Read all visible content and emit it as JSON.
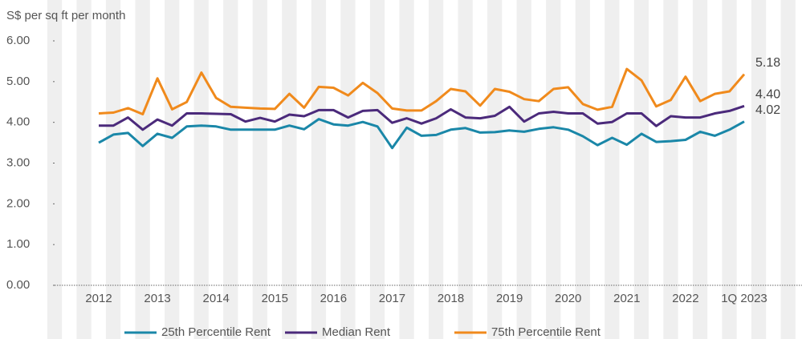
{
  "chart_data": {
    "type": "line",
    "y_axis_label": "S$ per sq ft per month",
    "categories": [
      "2012",
      null,
      null,
      null,
      "2013",
      null,
      null,
      null,
      "2014",
      null,
      null,
      null,
      "2015",
      null,
      null,
      null,
      "2016",
      null,
      null,
      null,
      "2017",
      null,
      null,
      null,
      "2018",
      null,
      null,
      null,
      "2019",
      null,
      null,
      null,
      "2020",
      null,
      null,
      null,
      "2021",
      null,
      null,
      null,
      "2022",
      null,
      null,
      null,
      "1Q 2023"
    ],
    "ylim": [
      0,
      6
    ],
    "yticks": [
      {
        "value": 0,
        "label": "0.00"
      },
      {
        "value": 1,
        "label": "1.00"
      },
      {
        "value": 2,
        "label": "2.00"
      },
      {
        "value": 3,
        "label": "3.00"
      },
      {
        "value": 4,
        "label": "4.00"
      },
      {
        "value": 5,
        "label": "5.00"
      },
      {
        "value": 6,
        "label": "6.00"
      }
    ],
    "grid": false,
    "legend": "bottom",
    "series": [
      {
        "name": "25th Percentile Rent",
        "color": "#1a87a8",
        "values": [
          3.5,
          3.7,
          3.74,
          3.42,
          3.72,
          3.62,
          3.9,
          3.92,
          3.9,
          3.82,
          3.82,
          3.82,
          3.82,
          3.92,
          3.83,
          4.08,
          3.95,
          3.92,
          4.01,
          3.9,
          3.37,
          3.87,
          3.67,
          3.69,
          3.82,
          3.86,
          3.75,
          3.76,
          3.8,
          3.77,
          3.84,
          3.88,
          3.82,
          3.66,
          3.44,
          3.62,
          3.45,
          3.72,
          3.52,
          3.54,
          3.57,
          3.77,
          3.67,
          3.82,
          4.02
        ],
        "value_labels": [
          null,
          null,
          null,
          null,
          null,
          null,
          null,
          null,
          null,
          null,
          null,
          null,
          null,
          null,
          null,
          null,
          null,
          null,
          null,
          null,
          null,
          null,
          null,
          null,
          null,
          null,
          null,
          null,
          null,
          null,
          null,
          null,
          null,
          null,
          null,
          null,
          null,
          null,
          null,
          null,
          null,
          null,
          null,
          null,
          "4.02"
        ]
      },
      {
        "name": "Median Rent",
        "color": "#4b2a7b",
        "values": [
          3.92,
          3.92,
          4.12,
          3.82,
          4.07,
          3.92,
          4.22,
          4.22,
          4.21,
          4.2,
          4.02,
          4.11,
          4.02,
          4.19,
          4.15,
          4.3,
          4.3,
          4.12,
          4.28,
          4.3,
          3.99,
          4.1,
          3.97,
          4.1,
          4.32,
          4.12,
          4.1,
          4.16,
          4.38,
          4.02,
          4.22,
          4.26,
          4.22,
          4.22,
          3.97,
          4.01,
          4.22,
          4.22,
          3.91,
          4.15,
          4.12,
          4.12,
          4.22,
          4.28,
          4.4
        ],
        "value_labels": [
          null,
          null,
          null,
          null,
          null,
          null,
          null,
          null,
          null,
          null,
          null,
          null,
          null,
          null,
          null,
          null,
          null,
          null,
          null,
          null,
          null,
          null,
          null,
          null,
          null,
          null,
          null,
          null,
          null,
          null,
          null,
          null,
          null,
          null,
          null,
          null,
          null,
          null,
          null,
          null,
          null,
          null,
          null,
          null,
          "4.40"
        ]
      },
      {
        "name": "75th Percentile Rent",
        "color": "#f08a1c",
        "values": [
          4.22,
          4.24,
          4.35,
          4.2,
          5.08,
          4.32,
          4.5,
          5.22,
          4.6,
          4.38,
          4.36,
          4.34,
          4.33,
          4.7,
          4.36,
          4.87,
          4.85,
          4.66,
          4.97,
          4.72,
          4.34,
          4.29,
          4.29,
          4.52,
          4.82,
          4.76,
          4.41,
          4.82,
          4.75,
          4.57,
          4.52,
          4.82,
          4.86,
          4.45,
          4.31,
          4.38,
          5.31,
          5.03,
          4.39,
          4.55,
          5.12,
          4.52,
          4.7,
          4.76,
          5.18
        ],
        "value_labels": [
          null,
          null,
          null,
          null,
          null,
          null,
          null,
          null,
          null,
          null,
          null,
          null,
          null,
          null,
          null,
          null,
          null,
          null,
          null,
          null,
          null,
          null,
          null,
          null,
          null,
          null,
          null,
          null,
          null,
          null,
          null,
          null,
          null,
          null,
          null,
          null,
          null,
          null,
          null,
          null,
          null,
          null,
          null,
          null,
          "5.18"
        ]
      }
    ]
  }
}
